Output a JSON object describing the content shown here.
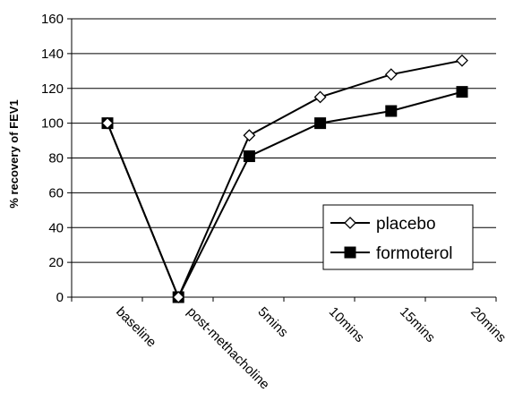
{
  "chart_data": {
    "type": "line",
    "title": "",
    "xlabel": "",
    "ylabel": "% recovery of FEV1",
    "ylim": [
      0,
      160
    ],
    "yticks": [
      "0",
      "20",
      "40",
      "60",
      "80",
      "100",
      "120",
      "140",
      "160"
    ],
    "categories": [
      "baseline",
      "post-methacholine",
      "5mins",
      "10mins",
      "15mins",
      "20mins"
    ],
    "grid": "horizontal",
    "legend_position": "right",
    "series": [
      {
        "name": "placebo",
        "marker": "diamond-open",
        "color": "#000000",
        "values": [
          100,
          0,
          93,
          115,
          128,
          136
        ]
      },
      {
        "name": "formoterol",
        "marker": "square-filled",
        "color": "#000000",
        "values": [
          100,
          0,
          81,
          100,
          107,
          118
        ]
      }
    ]
  }
}
